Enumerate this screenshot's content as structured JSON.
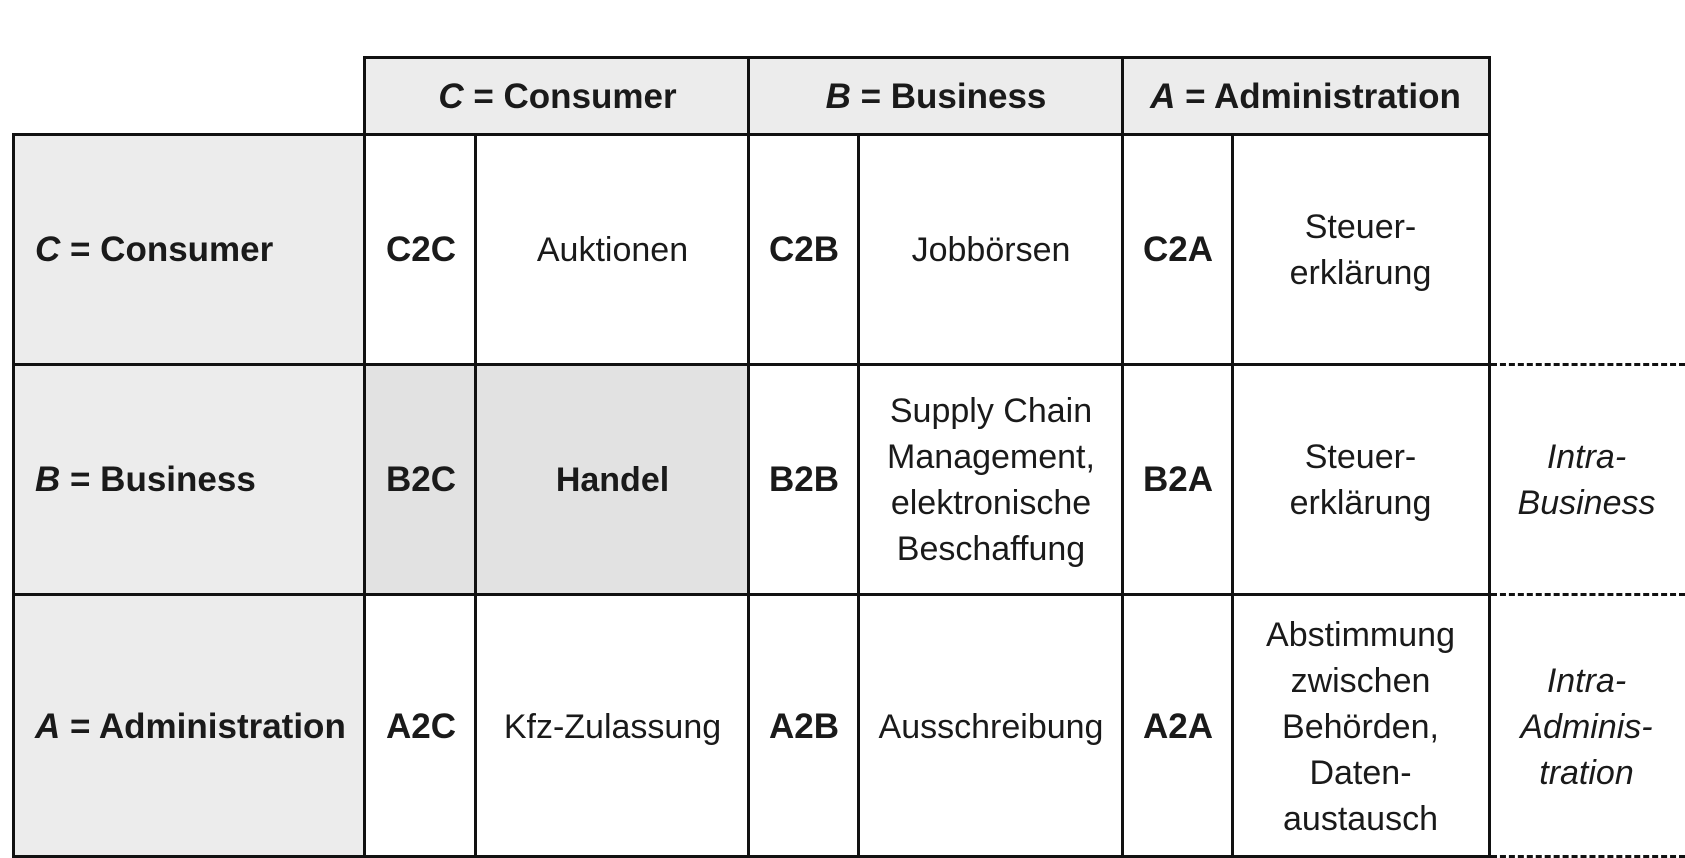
{
  "columns": [
    {
      "letter": "C",
      "label": " = Consumer"
    },
    {
      "letter": "B",
      "label": " = Business"
    },
    {
      "letter": "A",
      "label": " = Administration"
    }
  ],
  "rows": [
    {
      "letter": "C",
      "label": " = Consumer",
      "cells": [
        {
          "code": "C2C",
          "text": "Auktionen"
        },
        {
          "code": "C2B",
          "text": "Jobbörsen"
        },
        {
          "code": "C2A",
          "text": "Steuer-\nerklärung"
        }
      ],
      "side": ""
    },
    {
      "letter": "B",
      "label": " = Business",
      "cells": [
        {
          "code": "B2C",
          "text": "Handel"
        },
        {
          "code": "B2B",
          "text": "Supply Chain\nManagement,\nelektronische\nBeschaffung"
        },
        {
          "code": "B2A",
          "text": "Steuer-\nerklärung"
        }
      ],
      "side": "Intra-\nBusiness"
    },
    {
      "letter": "A",
      "label": " = Administration",
      "cells": [
        {
          "code": "A2C",
          "text": "Kfz-Zulassung"
        },
        {
          "code": "A2B",
          "text": "Ausschreibung"
        },
        {
          "code": "A2A",
          "text": "Abstimmung\nzwischen\nBehörden,\nDaten-\naustausch"
        }
      ],
      "side": "Intra-\nAdminis-\ntration"
    }
  ]
}
